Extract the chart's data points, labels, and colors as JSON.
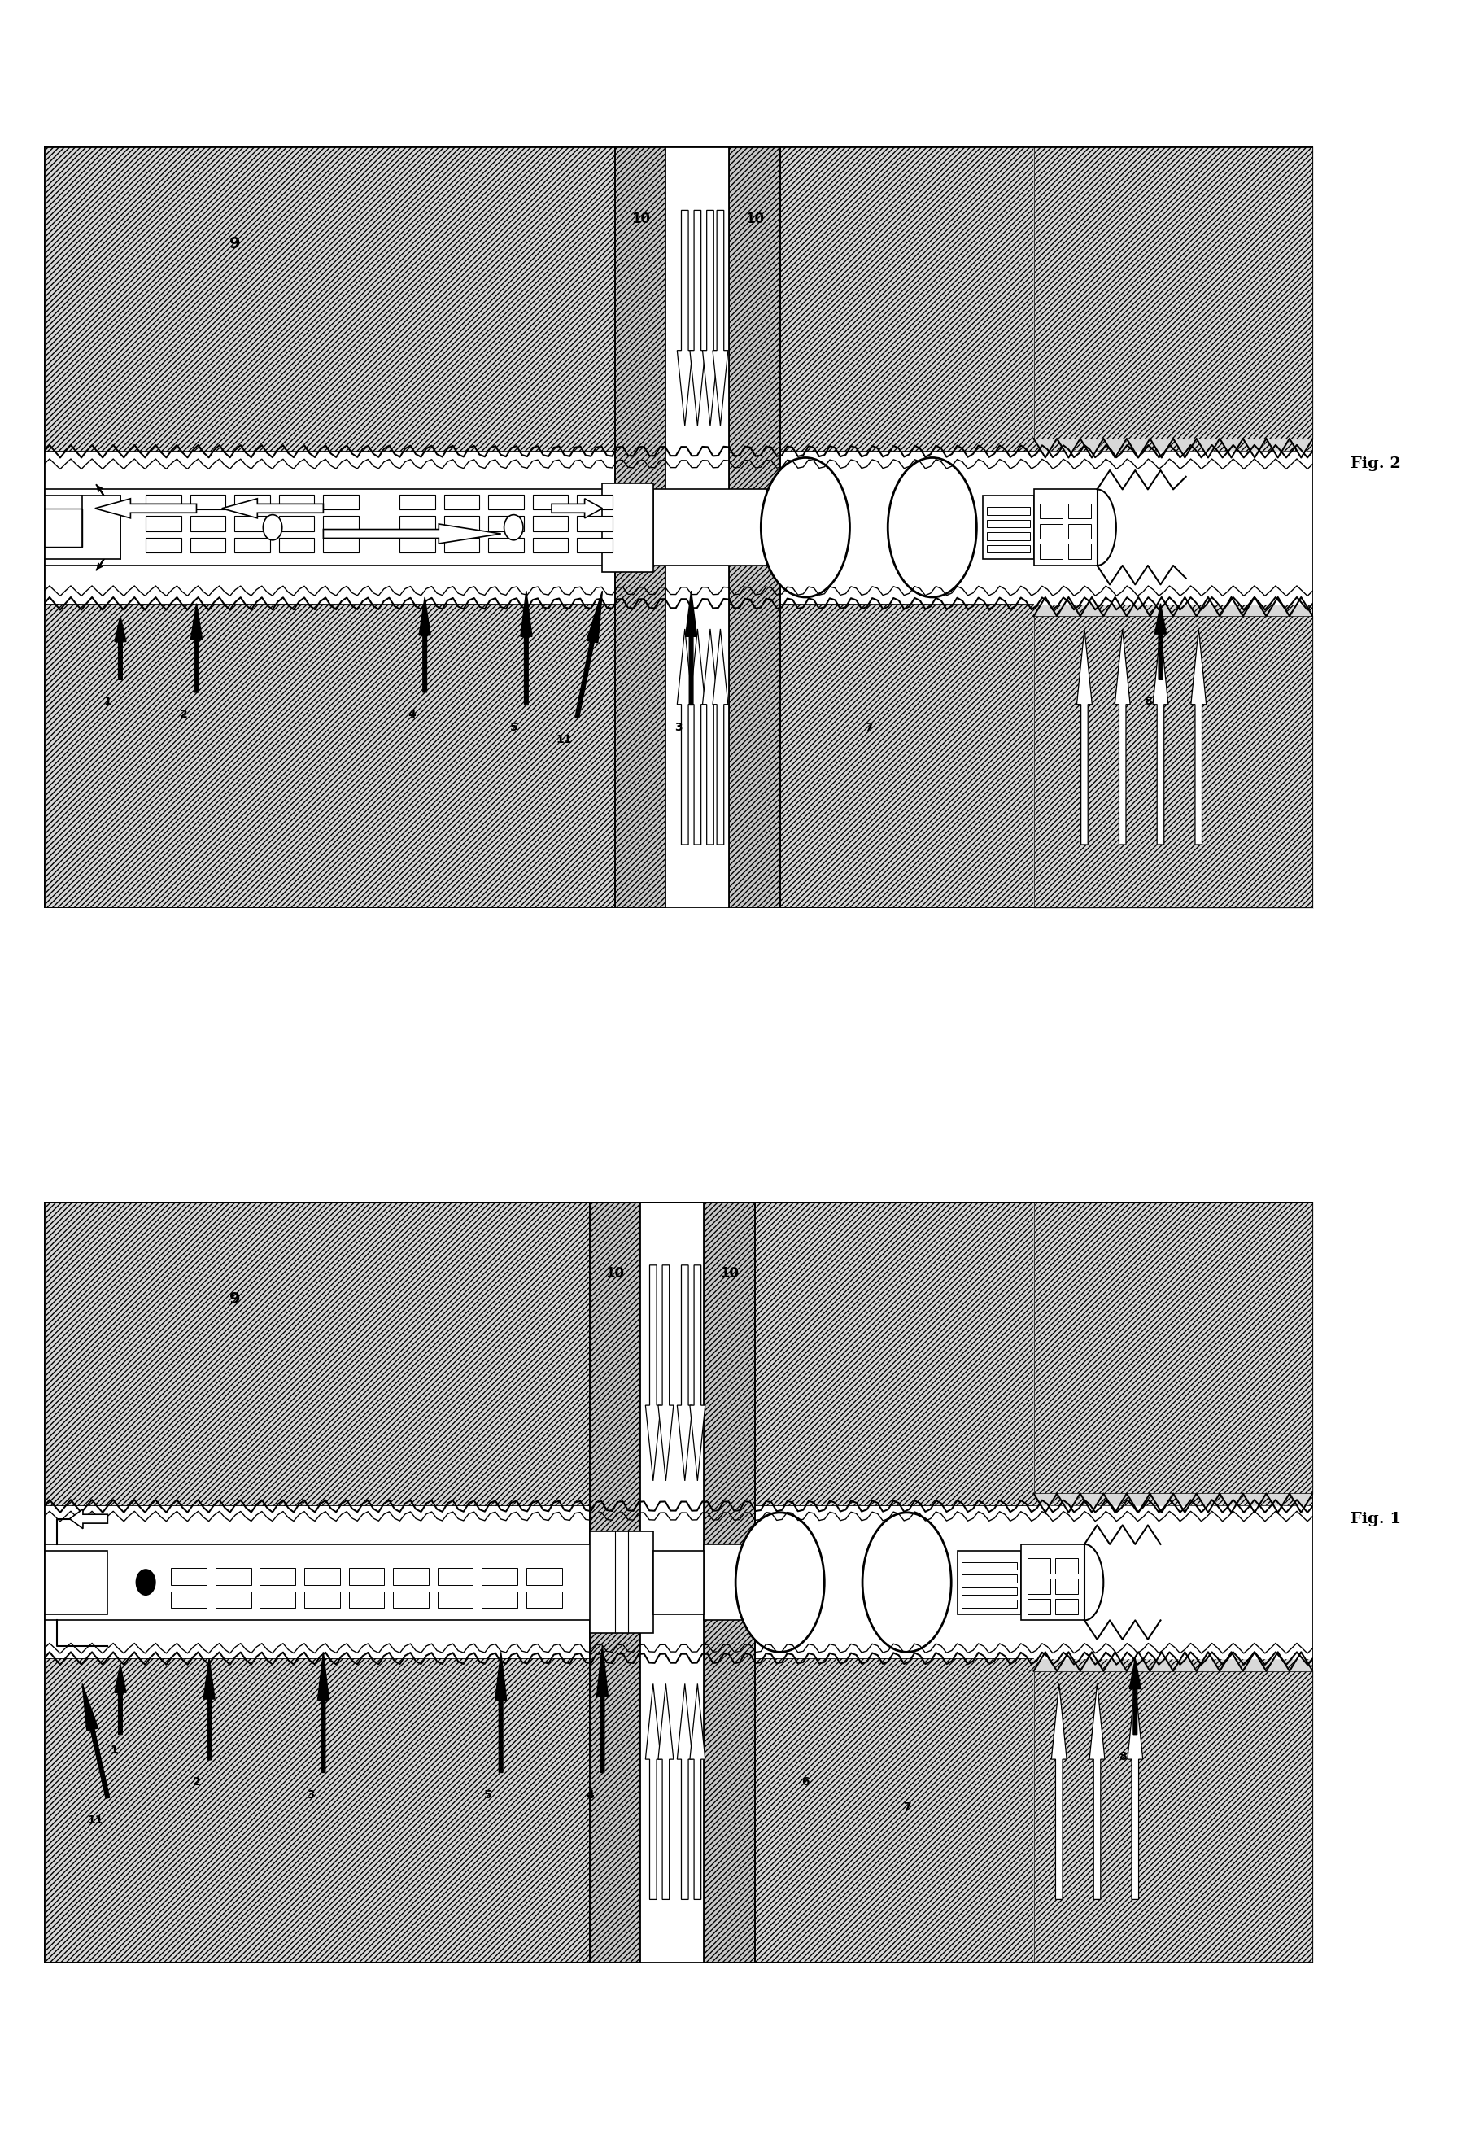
{
  "fig_width": 18.13,
  "fig_height": 26.19,
  "bg_color": "#ffffff",
  "fig1_label": "Fig. 1",
  "fig2_label": "Fig. 2"
}
